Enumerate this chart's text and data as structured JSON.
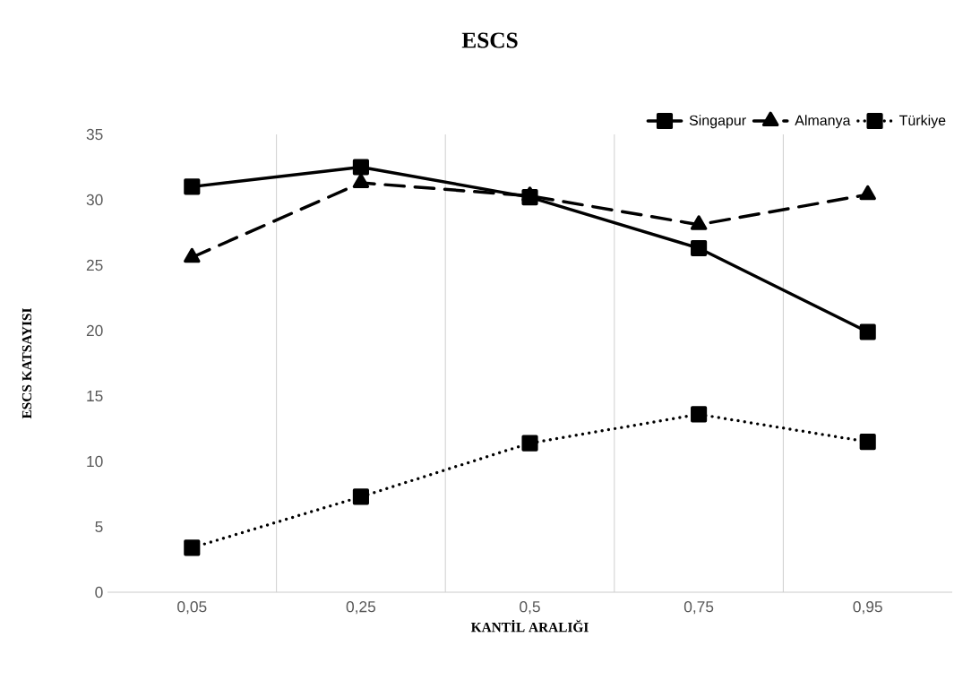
{
  "chart_data": {
    "type": "line",
    "title": "ESCS",
    "xlabel": "KANTİL  ARALIĞI",
    "ylabel": "ESCS  KATSAYISI",
    "categories": [
      "0,05",
      "0,25",
      "0,5",
      "0,75",
      "0,95"
    ],
    "series": [
      {
        "name": "Singapur",
        "color": "#000000",
        "marker": "square",
        "line_style": "solid",
        "values": [
          31.0,
          32.5,
          30.2,
          26.3,
          19.9
        ]
      },
      {
        "name": "Almanya",
        "color": "#000000",
        "marker": "triangle",
        "line_style": "dashed",
        "values": [
          25.6,
          31.3,
          30.3,
          28.1,
          30.4
        ]
      },
      {
        "name": "Türkiye",
        "color": "#000000",
        "marker": "square",
        "line_style": "dotted",
        "values": [
          3.4,
          7.3,
          11.4,
          13.6,
          11.5
        ]
      }
    ],
    "ylim": [
      0,
      35
    ],
    "yticks": [
      0,
      5,
      10,
      15,
      20,
      25,
      30,
      35
    ],
    "grid": "x",
    "legend": "top right"
  }
}
